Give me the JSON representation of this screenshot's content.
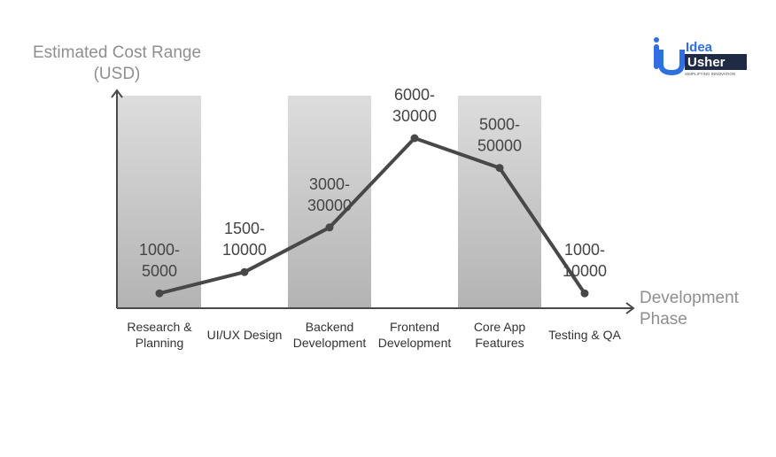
{
  "chart_data": {
    "type": "line",
    "title": "",
    "ylabel_line1": "Estimated Cost Range",
    "ylabel_line2": "(USD)",
    "xlabel_line1": "Development",
    "xlabel_line2": "Phase",
    "categories": [
      [
        "Research &",
        "Planning"
      ],
      [
        "UI/UX Design"
      ],
      [
        "Backend",
        "Development"
      ],
      [
        "Frontend",
        "Development"
      ],
      [
        "Core App",
        "Features"
      ],
      [
        "Testing & QA"
      ]
    ],
    "ranges": [
      [
        "1000-",
        "5000"
      ],
      [
        "1500-",
        "10000"
      ],
      [
        "3000-",
        "30000"
      ],
      [
        "6000-",
        "30000"
      ],
      [
        "5000-",
        "50000"
      ],
      [
        "1000-",
        "10000"
      ]
    ],
    "values": [
      0.07,
      0.17,
      0.38,
      0.8,
      0.66,
      0.07
    ],
    "ylim": [
      0,
      1
    ],
    "shaded_columns": [
      0,
      2,
      4
    ],
    "line_color": "#484848",
    "axis_color": "#4a4a4a",
    "label_color": "#444444"
  },
  "logo": {
    "line1": "Idea",
    "line2": "Usher",
    "tagline": "SIMPLIFYING INNOVATION",
    "blue": "#2f6fe0",
    "dark": "#1f2a44"
  }
}
